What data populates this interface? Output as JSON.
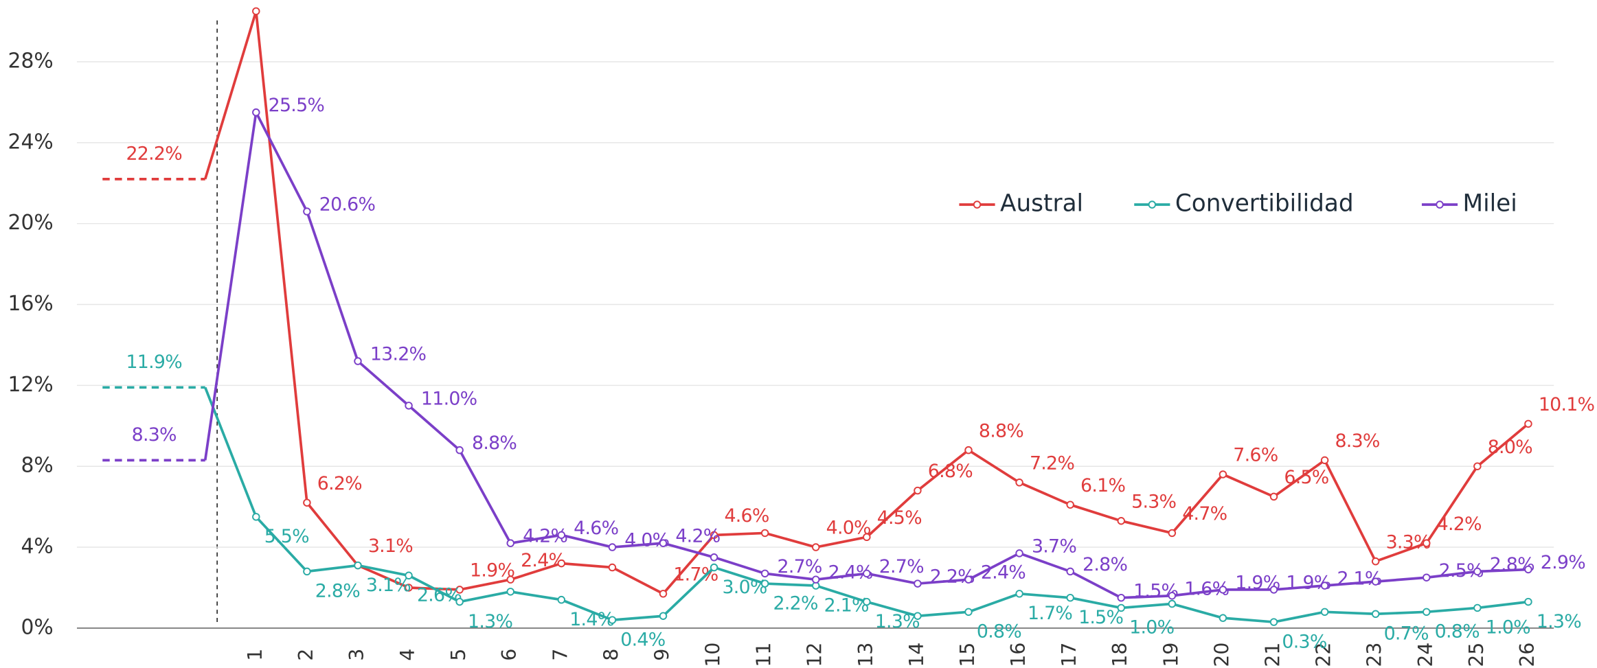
{
  "chart_data": {
    "type": "line",
    "categories": [
      null,
      "1",
      "2",
      "3",
      "4",
      "5",
      "6",
      "7",
      "8",
      "9",
      "10",
      "11",
      "12",
      "13",
      "14",
      "15",
      "16",
      "17",
      "18",
      "19",
      "20",
      "21",
      "22",
      "23",
      "24",
      "25",
      "26"
    ],
    "series": [
      {
        "name": "Austral",
        "color": "#e03c3c",
        "values": [
          22.2,
          30.5,
          6.2,
          3.1,
          2.0,
          1.9,
          2.4,
          3.2,
          3.0,
          1.7,
          4.6,
          4.7,
          4.0,
          4.5,
          6.8,
          8.8,
          7.2,
          6.1,
          5.3,
          4.7,
          7.6,
          6.5,
          8.3,
          3.3,
          4.2,
          8.0,
          10.1
        ],
        "value_labels": [
          "22.2%",
          "30.5%",
          "6.2%",
          "3.1%",
          null,
          "1.9%",
          "2.4%",
          null,
          null,
          "1.7%",
          "4.6%",
          null,
          "4.0%",
          "4.5%",
          "6.8%",
          "8.8%",
          "7.2%",
          "6.1%",
          "5.3%",
          "4.7%",
          "7.6%",
          "6.5%",
          "8.3%",
          "3.3%",
          "4.2%",
          "8.0%",
          "10.1%"
        ]
      },
      {
        "name": "Convertibilidad",
        "color": "#2aaba5",
        "values": [
          11.9,
          5.5,
          2.8,
          3.1,
          2.6,
          1.3,
          1.8,
          1.4,
          0.4,
          0.6,
          3.0,
          2.2,
          2.1,
          1.3,
          0.6,
          0.8,
          1.7,
          1.5,
          1.0,
          1.2,
          0.5,
          0.3,
          0.8,
          0.7,
          0.8,
          1.0,
          1.3
        ],
        "value_labels": [
          "11.9%",
          "5.5%",
          "2.8%",
          "3.1%",
          "2.6%",
          "1.3%",
          null,
          "1.4%",
          "0.4%",
          null,
          "3.0%",
          "2.2%",
          "2.1%",
          "1.3%",
          null,
          "0.8%",
          "1.7%",
          "1.5%",
          "1.0%",
          null,
          null,
          "0.3%",
          null,
          "0.7%",
          "0.8%",
          "1.0%",
          "1.3%"
        ]
      },
      {
        "name": "Milei",
        "color": "#7b3fc8",
        "values": [
          8.3,
          25.5,
          20.6,
          13.2,
          11.0,
          8.8,
          4.2,
          4.6,
          4.0,
          4.2,
          3.5,
          2.7,
          2.4,
          2.7,
          2.2,
          2.4,
          3.7,
          2.8,
          1.5,
          1.6,
          1.9,
          1.9,
          2.1,
          2.3,
          2.5,
          2.8,
          2.9
        ],
        "value_labels": [
          "8.3%",
          "25.5%",
          "20.6%",
          "13.2%",
          "11.0%",
          "8.8%",
          "4.2%",
          "4.6%",
          "4.0%",
          "4.2%",
          null,
          "2.7%",
          "2.4%",
          "2.7%",
          "2.2%",
          "2.4%",
          "3.7%",
          "2.8%",
          "1.5%",
          "1.6%",
          "1.9%",
          "1.9%",
          "2.1%",
          null,
          "2.5%",
          "2.8%",
          "2.9%"
        ]
      }
    ],
    "ylim": [
      0,
      30.6
    ],
    "yticks": [
      {
        "value": 0,
        "label": "0%"
      },
      {
        "value": 4,
        "label": "4%"
      },
      {
        "value": 8,
        "label": "8%"
      },
      {
        "value": 12,
        "label": "12%"
      },
      {
        "value": 16,
        "label": "16%"
      },
      {
        "value": 20,
        "label": "20%"
      },
      {
        "value": 24,
        "label": "24%"
      },
      {
        "value": 28,
        "label": "28%"
      }
    ],
    "grid": true
  }
}
